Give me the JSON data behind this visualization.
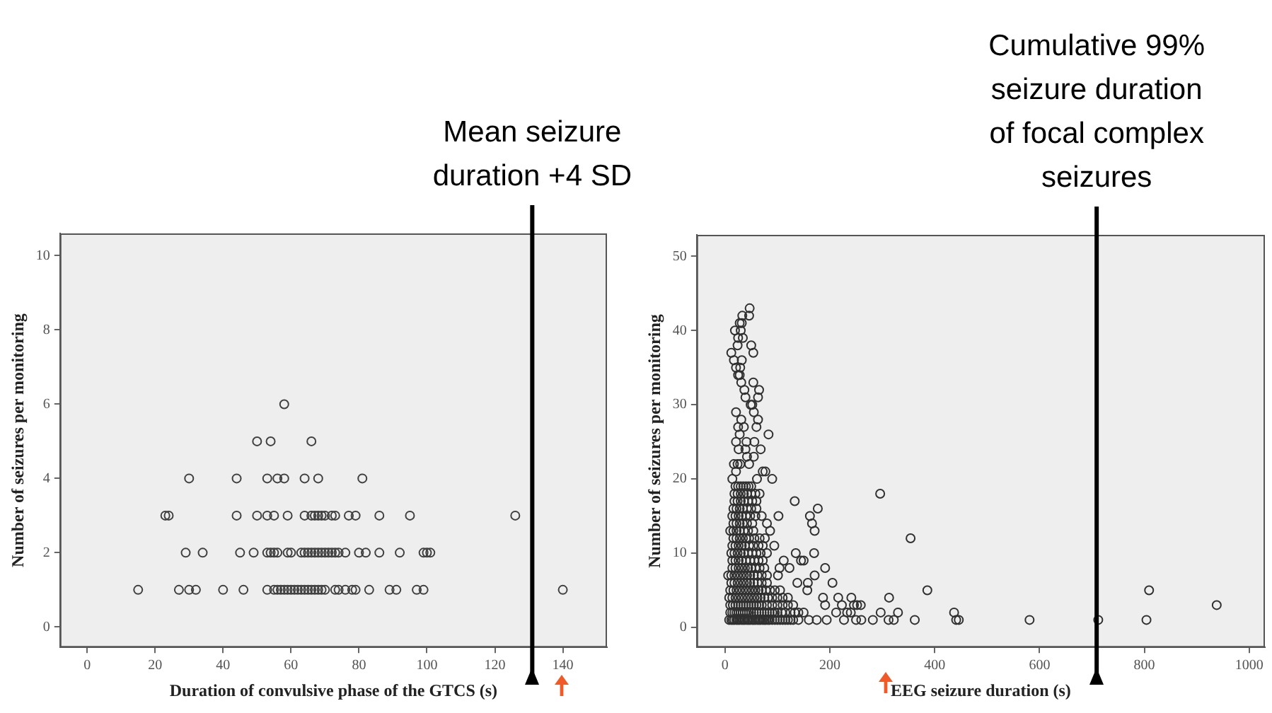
{
  "chart_data": [
    {
      "type": "scatter",
      "xlabel": "Duration of convulsive phase of the GTCS (s)",
      "ylabel": "Number of seizures per monitoring",
      "color": "#404040",
      "marker": "circle",
      "grid": false,
      "xlim": [
        -8,
        153
      ],
      "ylim": [
        -0.55,
        10.6
      ],
      "xticks": [
        0,
        20,
        40,
        60,
        80,
        100,
        120,
        140
      ],
      "yticks": [
        0,
        2,
        4,
        6,
        8,
        10
      ],
      "ref_lines": [
        {
          "axis": "x",
          "value": 131,
          "label": "Mean seizure duration +4 SD",
          "color": "#000000"
        }
      ],
      "x": [
        58,
        50,
        54,
        66,
        30,
        44,
        53,
        56,
        58,
        64,
        68,
        81,
        23,
        24,
        44,
        50,
        53,
        55,
        59,
        64,
        66,
        67,
        68,
        69,
        70,
        72,
        73,
        77,
        79,
        86,
        95,
        126,
        29,
        34,
        45,
        49,
        53,
        54,
        55,
        56,
        59,
        60,
        63,
        64,
        65,
        66,
        67,
        68,
        69,
        70,
        71,
        72,
        73,
        74,
        76,
        80,
        82,
        86,
        92,
        99,
        100,
        101,
        15,
        27,
        30,
        32,
        40,
        46,
        53,
        55,
        56,
        57,
        58,
        59,
        60,
        61,
        62,
        63,
        64,
        65,
        66,
        67,
        68,
        69,
        70,
        73,
        74,
        76,
        78,
        79,
        83,
        89,
        91,
        97,
        99,
        140
      ],
      "values": [
        6,
        5,
        5,
        5,
        4,
        4,
        4,
        4,
        4,
        4,
        4,
        4,
        3,
        3,
        3,
        3,
        3,
        3,
        3,
        3,
        3,
        3,
        3,
        3,
        3,
        3,
        3,
        3,
        3,
        3,
        3,
        3,
        2,
        2,
        2,
        2,
        2,
        2,
        2,
        2,
        2,
        2,
        2,
        2,
        2,
        2,
        2,
        2,
        2,
        2,
        2,
        2,
        2,
        2,
        2,
        2,
        2,
        2,
        2,
        2,
        2,
        2,
        1,
        1,
        1,
        1,
        1,
        1,
        1,
        1,
        1,
        1,
        1,
        1,
        1,
        1,
        1,
        1,
        1,
        1,
        1,
        1,
        1,
        1,
        1,
        1,
        1,
        1,
        1,
        1,
        1,
        1,
        1,
        1,
        1,
        1
      ]
    },
    {
      "type": "scatter",
      "xlabel": "EEG seizure duration (s)",
      "ylabel": "Number of seizures per monitoring",
      "color": "#303030",
      "marker": "circle",
      "grid": false,
      "xlim": [
        -54,
        1030
      ],
      "ylim": [
        -2.7,
        52.9
      ],
      "xticks": [
        0,
        200,
        400,
        600,
        800,
        1000
      ],
      "yticks": [
        0,
        10,
        20,
        30,
        40,
        50
      ],
      "ref_lines": [
        {
          "axis": "x",
          "value": 709,
          "label": "Cumulative 99% seizure duration of focal complex seizures",
          "color": "#000000"
        }
      ],
      "x": [
        47,
        33,
        46,
        28,
        32,
        19,
        30,
        25,
        34,
        24,
        50,
        12,
        54,
        17,
        32,
        21,
        29,
        25,
        28,
        31,
        54,
        37,
        65,
        39,
        63,
        49,
        52,
        21,
        55,
        31,
        63,
        25,
        36,
        60,
        28,
        83,
        21,
        41,
        56,
        26,
        39,
        68,
        42,
        55,
        17,
        24,
        29,
        46,
        21,
        72,
        77,
        14,
        61,
        90,
        20,
        25,
        30,
        35,
        40,
        45,
        50,
        18,
        24,
        30,
        36,
        42,
        50,
        58,
        66,
        296,
        18,
        24,
        30,
        36,
        44,
        52,
        60,
        133,
        16,
        22,
        28,
        34,
        42,
        50,
        60,
        177,
        14,
        20,
        26,
        32,
        40,
        48,
        58,
        70,
        102,
        162,
        16,
        22,
        28,
        34,
        42,
        52,
        80,
        166,
        10,
        16,
        22,
        28,
        36,
        44,
        54,
        86,
        171,
        16,
        22,
        28,
        34,
        40,
        46,
        56,
        66,
        76,
        354,
        14,
        20,
        26,
        32,
        38,
        46,
        54,
        64,
        72,
        94,
        12,
        18,
        24,
        30,
        36,
        44,
        52,
        60,
        68,
        80,
        135,
        170,
        14,
        20,
        26,
        32,
        40,
        48,
        56,
        64,
        72,
        112,
        145,
        150,
        14,
        20,
        26,
        32,
        38,
        44,
        50,
        58,
        66,
        75,
        104,
        123,
        191,
        6,
        12,
        18,
        24,
        30,
        36,
        42,
        48,
        55,
        62,
        70,
        80,
        101,
        171,
        12,
        18,
        24,
        30,
        36,
        42,
        48,
        55,
        62,
        70,
        80,
        138,
        158,
        205,
        10,
        16,
        22,
        28,
        34,
        40,
        46,
        52,
        58,
        64,
        70,
        78,
        86,
        95,
        105,
        157,
        386,
        809,
        8,
        14,
        20,
        26,
        32,
        38,
        44,
        50,
        56,
        62,
        68,
        75,
        82,
        90,
        100,
        110,
        120,
        187,
        216,
        241,
        313,
        10,
        15,
        20,
        25,
        30,
        35,
        40,
        45,
        50,
        55,
        60,
        65,
        70,
        80,
        90,
        100,
        110,
        120,
        130,
        191,
        223,
        246,
        252,
        259,
        938,
        10,
        14,
        18,
        22,
        26,
        30,
        34,
        38,
        42,
        46,
        50,
        55,
        60,
        65,
        70,
        75,
        80,
        85,
        90,
        95,
        100,
        108,
        115,
        125,
        133,
        140,
        150,
        212,
        233,
        240,
        297,
        330,
        437,
        8,
        12,
        15,
        18,
        22,
        25,
        28,
        32,
        35,
        38,
        42,
        45,
        48,
        52,
        55,
        58,
        62,
        65,
        68,
        72,
        75,
        78,
        82,
        85,
        90,
        95,
        100,
        105,
        110,
        115,
        120,
        125,
        130,
        140,
        160,
        175,
        194,
        227,
        250,
        260,
        282,
        312,
        322,
        362,
        441,
        446,
        581,
        712,
        804
      ],
      "values": [
        43,
        42,
        42,
        41,
        41,
        40,
        40,
        39,
        39,
        38,
        38,
        37,
        37,
        36,
        36,
        35,
        35,
        34,
        34,
        33,
        33,
        32,
        32,
        31,
        31,
        30,
        30,
        29,
        29,
        28,
        28,
        27,
        27,
        27,
        26,
        26,
        25,
        25,
        25,
        24,
        24,
        24,
        23,
        23,
        22,
        22,
        22,
        22,
        21,
        21,
        21,
        20,
        20,
        20,
        19,
        19,
        19,
        19,
        19,
        19,
        19,
        18,
        18,
        18,
        18,
        18,
        18,
        18,
        18,
        18,
        17,
        17,
        17,
        17,
        17,
        17,
        17,
        17,
        16,
        16,
        16,
        16,
        16,
        16,
        16,
        16,
        15,
        15,
        15,
        15,
        15,
        15,
        15,
        15,
        15,
        15,
        14,
        14,
        14,
        14,
        14,
        14,
        14,
        14,
        13,
        13,
        13,
        13,
        13,
        13,
        13,
        13,
        13,
        12,
        12,
        12,
        12,
        12,
        12,
        12,
        12,
        12,
        12,
        11,
        11,
        11,
        11,
        11,
        11,
        11,
        11,
        11,
        11,
        10,
        10,
        10,
        10,
        10,
        10,
        10,
        10,
        10,
        10,
        10,
        10,
        9,
        9,
        9,
        9,
        9,
        9,
        9,
        9,
        9,
        9,
        9,
        9,
        8,
        8,
        8,
        8,
        8,
        8,
        8,
        8,
        8,
        8,
        8,
        8,
        8,
        7,
        7,
        7,
        7,
        7,
        7,
        7,
        7,
        7,
        7,
        7,
        7,
        7,
        7,
        6,
        6,
        6,
        6,
        6,
        6,
        6,
        6,
        6,
        6,
        6,
        6,
        6,
        6,
        5,
        5,
        5,
        5,
        5,
        5,
        5,
        5,
        5,
        5,
        5,
        5,
        5,
        5,
        5,
        5,
        5,
        5,
        4,
        4,
        4,
        4,
        4,
        4,
        4,
        4,
        4,
        4,
        4,
        4,
        4,
        4,
        4,
        4,
        4,
        4,
        4,
        4,
        4,
        3,
        3,
        3,
        3,
        3,
        3,
        3,
        3,
        3,
        3,
        3,
        3,
        3,
        3,
        3,
        3,
        3,
        3,
        3,
        3,
        3,
        3,
        3,
        3,
        3,
        2,
        2,
        2,
        2,
        2,
        2,
        2,
        2,
        2,
        2,
        2,
        2,
        2,
        2,
        2,
        2,
        2,
        2,
        2,
        2,
        2,
        2,
        2,
        2,
        2,
        2,
        2,
        2,
        2,
        2,
        2,
        2,
        2,
        1,
        1,
        1,
        1,
        1,
        1,
        1,
        1,
        1,
        1,
        1,
        1,
        1,
        1,
        1,
        1,
        1,
        1,
        1,
        1,
        1,
        1,
        1,
        1,
        1,
        1,
        1,
        1,
        1,
        1,
        1,
        1,
        1,
        1,
        1,
        1,
        1,
        1,
        1,
        1,
        1,
        1,
        1,
        1,
        1,
        1,
        1,
        1,
        1
      ]
    }
  ]
}
